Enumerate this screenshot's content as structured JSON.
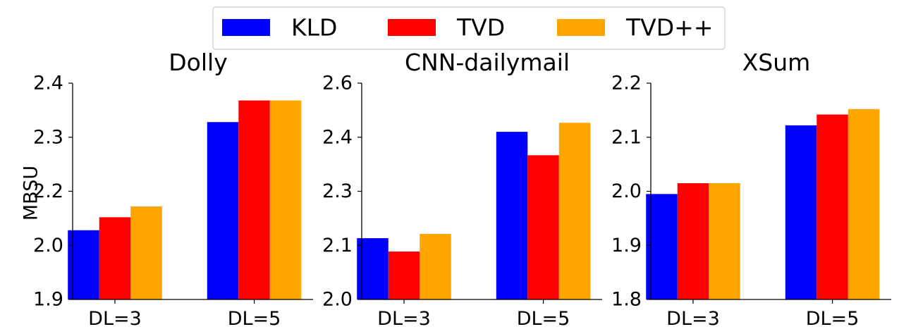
{
  "legend": {
    "placement": "top-center",
    "entries": [
      {
        "label": "KLD",
        "color": "#0000ff"
      },
      {
        "label": "TVD",
        "color": "#ff0000"
      },
      {
        "label": "TVD++",
        "color": "#ffa500"
      }
    ]
  },
  "ylabel": "MBSU",
  "chart_data": [
    {
      "type": "bar",
      "title": "Dolly",
      "categories": [
        "DL=3",
        "DL=5"
      ],
      "ylim": [
        1.9,
        2.4
      ],
      "yticks": [
        "1.9",
        "2.0",
        "2.2",
        "2.3",
        "2.4"
      ],
      "ytick_values": [
        1.9,
        2.0,
        2.2,
        2.3,
        2.4
      ],
      "series": [
        {
          "name": "KLD",
          "values": [
            2.06,
            2.31
          ]
        },
        {
          "name": "TVD",
          "values": [
            2.09,
            2.36
          ]
        },
        {
          "name": "TVD++",
          "values": [
            2.115,
            2.36
          ]
        }
      ]
    },
    {
      "type": "bar",
      "title": "CNN-dailymail",
      "categories": [
        "DL=3",
        "DL=5"
      ],
      "ylim": [
        2.0,
        2.6
      ],
      "yticks": [
        "2.0",
        "2.1",
        "2.3",
        "2.4",
        "2.6"
      ],
      "ytick_values": [
        2.0,
        2.1,
        2.3,
        2.4,
        2.6
      ],
      "series": [
        {
          "name": "KLD",
          "values": [
            2.17,
            2.465
          ]
        },
        {
          "name": "TVD",
          "values": [
            2.133,
            2.4
          ]
        },
        {
          "name": "TVD++",
          "values": [
            2.182,
            2.49
          ]
        }
      ]
    },
    {
      "type": "bar",
      "title": "XSum",
      "categories": [
        "DL=3",
        "DL=5"
      ],
      "ylim": [
        1.8,
        2.2
      ],
      "yticks": [
        "1.8",
        "1.9",
        "2.0",
        "2.1",
        "2.2"
      ],
      "ytick_values": [
        1.8,
        1.9,
        2.0,
        2.1,
        2.2
      ],
      "series": [
        {
          "name": "KLD",
          "values": [
            1.995,
            2.122
          ]
        },
        {
          "name": "TVD",
          "values": [
            2.015,
            2.142
          ]
        },
        {
          "name": "TVD++",
          "values": [
            2.015,
            2.152
          ]
        }
      ]
    }
  ]
}
